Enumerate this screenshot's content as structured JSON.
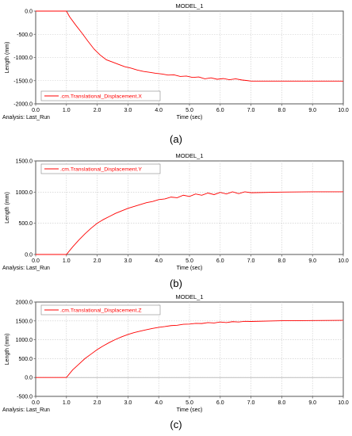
{
  "panels": [
    {
      "caption": "(a)"
    },
    {
      "caption": "(b)"
    },
    {
      "caption": "(c)"
    }
  ],
  "chart_data": [
    {
      "type": "line",
      "title": "MODEL_1",
      "xlabel": "Time (sec)",
      "ylabel": "Length (mm)",
      "analysis_label": "Analysis:  Last_Run",
      "xlim": [
        0,
        10
      ],
      "ylim": [
        -2000,
        0
      ],
      "x_ticks": [
        "0.0",
        "1.0",
        "2.0",
        "3.0",
        "4.0",
        "5.0",
        "6.0",
        "7.0",
        "8.0",
        "9.0",
        "10.0"
      ],
      "y_ticks": [
        "0.0",
        "-500.0",
        "-1000.0",
        "-1500.0",
        "-2000.0"
      ],
      "y_tick_values": [
        0,
        -500,
        -1000,
        -1500,
        -2000
      ],
      "grid": true,
      "legend_position": "bottom-left",
      "line_color": "#ff0000",
      "series": [
        {
          "name": ".cm.Translational_Displacement.X",
          "x": [
            0,
            0.5,
            1.0,
            1.1,
            1.3,
            1.5,
            1.7,
            1.9,
            2.1,
            2.3,
            2.5,
            2.7,
            2.9,
            3.1,
            3.3,
            3.5,
            3.7,
            3.9,
            4.1,
            4.3,
            4.5,
            4.7,
            4.9,
            5.1,
            5.3,
            5.5,
            5.7,
            5.9,
            6.1,
            6.3,
            6.5,
            6.7,
            6.9,
            7.0,
            8.0,
            9.0,
            10.0
          ],
          "y": [
            0,
            0,
            0,
            -120,
            -300,
            -470,
            -650,
            -820,
            -950,
            -1050,
            -1100,
            -1150,
            -1200,
            -1230,
            -1270,
            -1300,
            -1320,
            -1340,
            -1355,
            -1380,
            -1375,
            -1410,
            -1400,
            -1430,
            -1420,
            -1460,
            -1440,
            -1470,
            -1455,
            -1480,
            -1460,
            -1485,
            -1500,
            -1510,
            -1510,
            -1510,
            -1510
          ]
        }
      ]
    },
    {
      "type": "line",
      "title": "MODEL_1",
      "xlabel": "Time (sec)",
      "ylabel": "Length (mm)",
      "analysis_label": "Analysis:  Last_Run",
      "xlim": [
        0,
        10
      ],
      "ylim": [
        0,
        1500
      ],
      "x_ticks": [
        "0.0",
        "1.0",
        "2.0",
        "3.0",
        "4.0",
        "5.0",
        "6.0",
        "7.0",
        "8.0",
        "9.0",
        "10.0"
      ],
      "y_ticks": [
        "1500.0",
        "1000.0",
        "500.0",
        "0.0"
      ],
      "y_tick_values": [
        1500,
        1000,
        500,
        0
      ],
      "grid": true,
      "legend_position": "top-left",
      "line_color": "#ff0000",
      "series": [
        {
          "name": ".cm.Translational_Displacement.Y",
          "x": [
            0,
            0.5,
            1.0,
            1.2,
            1.4,
            1.6,
            1.8,
            2.0,
            2.2,
            2.4,
            2.6,
            2.8,
            3.0,
            3.2,
            3.4,
            3.6,
            3.8,
            4.0,
            4.2,
            4.4,
            4.6,
            4.8,
            5.0,
            5.2,
            5.4,
            5.6,
            5.8,
            6.0,
            6.2,
            6.4,
            6.6,
            6.8,
            7.0,
            8.0,
            9.0,
            10.0
          ],
          "y": [
            0,
            0,
            0,
            120,
            230,
            330,
            420,
            500,
            560,
            610,
            660,
            700,
            740,
            770,
            800,
            830,
            850,
            880,
            890,
            920,
            910,
            950,
            930,
            970,
            950,
            985,
            960,
            995,
            970,
            1005,
            975,
            1005,
            990,
            1000,
            1005,
            1005
          ]
        }
      ]
    },
    {
      "type": "line",
      "title": "MODEL_1",
      "xlabel": "Time (sec)",
      "ylabel": "Length (mm)",
      "analysis_label": "Analysis:  Last_Run",
      "xlim": [
        0,
        10
      ],
      "ylim": [
        -500,
        2000
      ],
      "x_ticks": [
        "0.0",
        "1.0",
        "2.0",
        "3.0",
        "4.0",
        "5.0",
        "6.0",
        "7.0",
        "8.0",
        "9.0",
        "10.0"
      ],
      "y_ticks": [
        "2000.0",
        "1500.0",
        "1000.0",
        "500.0",
        "0.0",
        "-500.0"
      ],
      "y_tick_values": [
        2000,
        1500,
        1000,
        500,
        0,
        -500
      ],
      "grid": true,
      "legend_position": "top-left",
      "line_color": "#ff0000",
      "series": [
        {
          "name": ".cm.Translational_Displacement.Z",
          "x": [
            0,
            0.5,
            1.0,
            1.2,
            1.4,
            1.6,
            1.8,
            2.0,
            2.2,
            2.4,
            2.6,
            2.8,
            3.0,
            3.2,
            3.4,
            3.6,
            3.8,
            4.0,
            4.2,
            4.4,
            4.6,
            4.8,
            5.0,
            5.2,
            5.4,
            5.6,
            5.8,
            6.0,
            6.2,
            6.4,
            6.6,
            6.8,
            7.0,
            8.0,
            9.0,
            10.0
          ],
          "y": [
            0,
            0,
            0,
            200,
            350,
            500,
            620,
            740,
            840,
            930,
            1010,
            1080,
            1140,
            1190,
            1230,
            1265,
            1300,
            1330,
            1350,
            1375,
            1385,
            1410,
            1415,
            1435,
            1430,
            1455,
            1445,
            1470,
            1455,
            1480,
            1470,
            1490,
            1485,
            1505,
            1510,
            1515
          ]
        }
      ]
    }
  ]
}
